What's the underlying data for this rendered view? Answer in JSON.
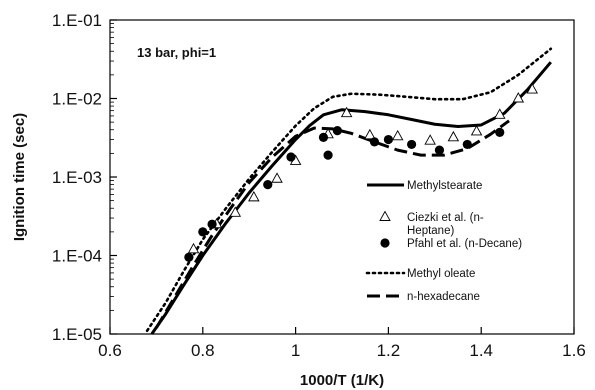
{
  "chart_data": {
    "type": "scatter",
    "title": "",
    "annotation": "13 bar, phi=1",
    "xlabel": "1000/T (1/K)",
    "ylabel": "Ignition time (sec)",
    "xlim": [
      0.6,
      1.6
    ],
    "ylim": [
      1e-05,
      0.1
    ],
    "yscale": "log",
    "grid": false,
    "legend_position": "center-right",
    "x_ticks": [
      0.6,
      0.8,
      1.0,
      1.2,
      1.4,
      1.6
    ],
    "x_tick_labels": [
      "0.6",
      "0.8",
      "1",
      "1.2",
      "1.4",
      "1.6"
    ],
    "y_ticks": [
      1e-05,
      0.0001,
      0.001,
      0.01,
      0.1
    ],
    "y_tick_labels": [
      "1.E-05",
      "1.E-04",
      "1.E-03",
      "1.E-02",
      "1.E-01"
    ],
    "series": [
      {
        "name": "Methylstearate",
        "style": "solid",
        "color": "#000000",
        "x": [
          0.69,
          0.72,
          0.76,
          0.8,
          0.85,
          0.9,
          0.95,
          1.0,
          1.03,
          1.06,
          1.1,
          1.15,
          1.2,
          1.25,
          1.3,
          1.35,
          1.4,
          1.45,
          1.5,
          1.55
        ],
        "y": [
          1e-05,
          1.8e-05,
          4.3e-05,
          0.0001,
          0.00026,
          0.00063,
          0.0014,
          0.003,
          0.0045,
          0.0062,
          0.0072,
          0.0068,
          0.0062,
          0.0054,
          0.0047,
          0.0044,
          0.0046,
          0.0065,
          0.013,
          0.029
        ]
      },
      {
        "name": "Ciezki et al. (n-Heptane)",
        "style": "open-triangle",
        "color": "#000000",
        "x": [
          0.78,
          0.83,
          0.87,
          0.91,
          0.96,
          1.0,
          1.07,
          1.11,
          1.16,
          1.22,
          1.29,
          1.34,
          1.39,
          1.44,
          1.48,
          1.51
        ],
        "y": [
          0.00012,
          0.00025,
          0.00035,
          0.00055,
          0.00095,
          0.0016,
          0.0035,
          0.0065,
          0.0034,
          0.0033,
          0.0029,
          0.0032,
          0.0038,
          0.0062,
          0.01,
          0.013
        ]
      },
      {
        "name": "Pfahl et al. (n-Decane)",
        "style": "filled-circle",
        "color": "#000000",
        "x": [
          0.77,
          0.8,
          0.82,
          0.94,
          0.99,
          1.06,
          1.07,
          1.09,
          1.17,
          1.2,
          1.25,
          1.31,
          1.37,
          1.44
        ],
        "y": [
          9.5e-05,
          0.0002,
          0.00025,
          0.0008,
          0.0018,
          0.0032,
          0.0019,
          0.0039,
          0.0028,
          0.003,
          0.0026,
          0.0022,
          0.0026,
          0.0037
        ]
      },
      {
        "name": "Methyl oleate",
        "style": "dotted",
        "color": "#000000",
        "x": [
          0.68,
          0.72,
          0.76,
          0.8,
          0.85,
          0.9,
          0.95,
          1.0,
          1.04,
          1.08,
          1.12,
          1.18,
          1.24,
          1.3,
          1.36,
          1.42,
          1.48,
          1.55
        ],
        "y": [
          1.1e-05,
          2.5e-05,
          6.5e-05,
          0.00016,
          0.0004,
          0.00095,
          0.0021,
          0.0045,
          0.0075,
          0.0105,
          0.0115,
          0.0112,
          0.0105,
          0.0098,
          0.0098,
          0.012,
          0.02,
          0.043
        ]
      },
      {
        "name": "n-hexadecane",
        "style": "dashed",
        "color": "#000000",
        "x": [
          0.7,
          0.74,
          0.78,
          0.82,
          0.86,
          0.9,
          0.95,
          1.0,
          1.04,
          1.08,
          1.12,
          1.17,
          1.22,
          1.27,
          1.32,
          1.37,
          1.42,
          1.46
        ],
        "y": [
          1.2e-05,
          3e-05,
          7.5e-05,
          0.00018,
          0.0004,
          0.00085,
          0.0018,
          0.0033,
          0.0042,
          0.0041,
          0.0036,
          0.0028,
          0.0022,
          0.0019,
          0.0019,
          0.0023,
          0.0035,
          0.0052
        ]
      }
    ],
    "legend": [
      {
        "style": "solid",
        "label": "Methylstearate"
      },
      {
        "style": "open-triangle",
        "label_lines": [
          "Ciezki et al. (n-",
          "Heptane)"
        ]
      },
      {
        "style": "filled-circle",
        "label": "Pfahl et al. (n-Decane)"
      },
      {
        "style": "dotted",
        "label": "Methyl oleate"
      },
      {
        "style": "dashed",
        "label": "n-hexadecane"
      }
    ]
  }
}
